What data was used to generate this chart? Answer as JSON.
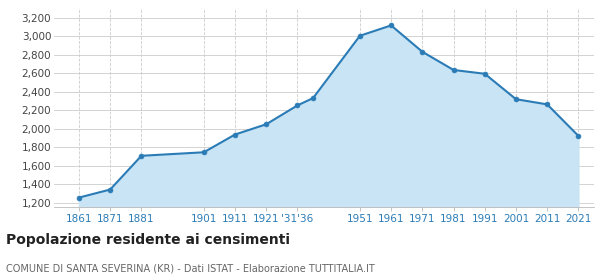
{
  "years": [
    1861,
    1871,
    1881,
    1901,
    1911,
    1921,
    1931,
    1936,
    1951,
    1961,
    1971,
    1981,
    1991,
    2001,
    2011,
    2021
  ],
  "population": [
    1254,
    1341,
    1706,
    1744,
    1936,
    2047,
    2251,
    2330,
    3004,
    3116,
    2831,
    2634,
    2593,
    2318,
    2262,
    1921
  ],
  "line_color": "#2B7CB6",
  "fill_color": "#C9E4F5",
  "marker_color": "#2B7CB6",
  "background_color": "#FFFFFF",
  "grid_color": "#CCCCCC",
  "ylabel_major": [
    1200,
    1400,
    1600,
    1800,
    2000,
    2200,
    2400,
    2600,
    2800,
    3000,
    3200
  ],
  "ylim": [
    1150,
    3300
  ],
  "xlim_min": 1853,
  "xlim_max": 2026,
  "x_tick_positions": [
    1861,
    1871,
    1881,
    1901,
    1911,
    1921,
    1931,
    1951,
    1961,
    1971,
    1981,
    1991,
    2001,
    2011,
    2021
  ],
  "x_tick_labels": [
    "1861",
    "1871",
    "1881",
    "1901",
    "1911",
    "1921",
    "'31'36",
    "1951",
    "1961",
    "1971",
    "1981",
    "1991",
    "2001",
    "2011",
    "2021"
  ],
  "title": "Popolazione residente ai censimenti",
  "subtitle": "COMUNE DI SANTA SEVERINA (KR) - Dati ISTAT - Elaborazione TUTTITALIA.IT",
  "title_fontsize": 10,
  "subtitle_fontsize": 7,
  "tick_fontsize": 7.5,
  "ytick_fontsize": 7.5
}
